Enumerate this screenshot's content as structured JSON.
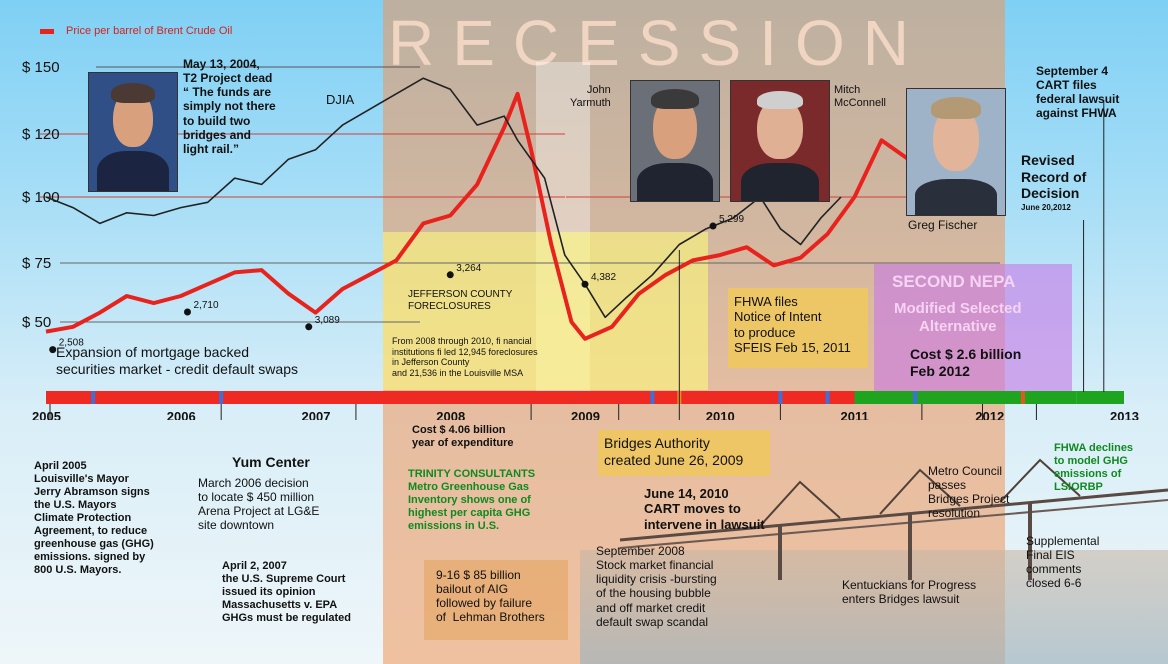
{
  "legend": {
    "label": "Price per barrel of Brent Crude Oil",
    "color": "#e8231e"
  },
  "recession_label": "RECESSION",
  "chart_data": {
    "type": "line",
    "title": "",
    "y_axis_ticks": [
      "$ 150",
      "$ 120",
      "$ 100",
      "$ 75",
      "$ 50"
    ],
    "ylim": [
      40,
      160
    ],
    "grid": false,
    "series": [
      {
        "name": "Price per barrel of Brent Crude Oil",
        "color": "#e8231e",
        "points": [
          {
            "t": 2005.0,
            "v": 46
          },
          {
            "t": 2005.2,
            "v": 48
          },
          {
            "t": 2005.4,
            "v": 54
          },
          {
            "t": 2005.6,
            "v": 61
          },
          {
            "t": 2005.8,
            "v": 58
          },
          {
            "t": 2006.0,
            "v": 61
          },
          {
            "t": 2006.2,
            "v": 66
          },
          {
            "t": 2006.4,
            "v": 71
          },
          {
            "t": 2006.6,
            "v": 72
          },
          {
            "t": 2006.8,
            "v": 62
          },
          {
            "t": 2007.0,
            "v": 54
          },
          {
            "t": 2007.2,
            "v": 64
          },
          {
            "t": 2007.4,
            "v": 70
          },
          {
            "t": 2007.6,
            "v": 76
          },
          {
            "t": 2007.8,
            "v": 90
          },
          {
            "t": 2008.0,
            "v": 93
          },
          {
            "t": 2008.2,
            "v": 104
          },
          {
            "t": 2008.4,
            "v": 123
          },
          {
            "t": 2008.5,
            "v": 138
          },
          {
            "t": 2008.6,
            "v": 115
          },
          {
            "t": 2008.75,
            "v": 82
          },
          {
            "t": 2008.9,
            "v": 50
          },
          {
            "t": 2009.0,
            "v": 43
          },
          {
            "t": 2009.2,
            "v": 48
          },
          {
            "t": 2009.4,
            "v": 62
          },
          {
            "t": 2009.6,
            "v": 70
          },
          {
            "t": 2009.8,
            "v": 76
          },
          {
            "t": 2010.0,
            "v": 78
          },
          {
            "t": 2010.2,
            "v": 81
          },
          {
            "t": 2010.4,
            "v": 74
          },
          {
            "t": 2010.6,
            "v": 77
          },
          {
            "t": 2010.8,
            "v": 86
          },
          {
            "t": 2011.0,
            "v": 100
          },
          {
            "t": 2011.2,
            "v": 118
          },
          {
            "t": 2011.4,
            "v": 112
          },
          {
            "t": 2011.6,
            "v": 109
          },
          {
            "t": 2011.8,
            "v": 106
          }
        ]
      },
      {
        "name": "DJIA",
        "color": "#222222",
        "points": [
          {
            "t": 2005.0,
            "v": 100
          },
          {
            "t": 2005.2,
            "v": 96
          },
          {
            "t": 2005.4,
            "v": 90
          },
          {
            "t": 2005.6,
            "v": 94
          },
          {
            "t": 2005.8,
            "v": 93
          },
          {
            "t": 2006.0,
            "v": 96
          },
          {
            "t": 2006.2,
            "v": 98
          },
          {
            "t": 2006.4,
            "v": 106
          },
          {
            "t": 2006.6,
            "v": 104
          },
          {
            "t": 2006.8,
            "v": 112
          },
          {
            "t": 2007.0,
            "v": 115
          },
          {
            "t": 2007.2,
            "v": 124
          },
          {
            "t": 2007.4,
            "v": 131
          },
          {
            "t": 2007.6,
            "v": 138
          },
          {
            "t": 2007.8,
            "v": 145
          },
          {
            "t": 2008.0,
            "v": 140
          },
          {
            "t": 2008.2,
            "v": 124
          },
          {
            "t": 2008.4,
            "v": 128
          },
          {
            "t": 2008.5,
            "v": 118
          },
          {
            "t": 2008.7,
            "v": 106
          },
          {
            "t": 2008.85,
            "v": 78
          },
          {
            "t": 2009.0,
            "v": 66
          },
          {
            "t": 2009.15,
            "v": 52
          },
          {
            "t": 2009.3,
            "v": 60
          },
          {
            "t": 2009.5,
            "v": 70
          },
          {
            "t": 2009.7,
            "v": 82
          },
          {
            "t": 2009.9,
            "v": 88
          },
          {
            "t": 2010.1,
            "v": 92
          },
          {
            "t": 2010.3,
            "v": 100
          },
          {
            "t": 2010.45,
            "v": 88
          },
          {
            "t": 2010.6,
            "v": 82
          },
          {
            "t": 2010.75,
            "v": 92
          },
          {
            "t": 2010.9,
            "v": 100
          }
        ]
      }
    ],
    "dow_points": [
      {
        "t": 2005.05,
        "label": "2,508"
      },
      {
        "t": 2006.05,
        "label": "2,710"
      },
      {
        "t": 2006.95,
        "label": "3,089"
      },
      {
        "t": 2008.0,
        "label": "3,264"
      },
      {
        "t": 2009.0,
        "label": "4,382"
      },
      {
        "t": 2009.95,
        "label": "5,299"
      }
    ]
  },
  "timeline": {
    "years": [
      "2005",
      "2006",
      "2007",
      "2008",
      "2009",
      "2010",
      "2011",
      "2012",
      "2013"
    ]
  },
  "labels": {
    "djia": "DJIA",
    "may2004": "May 13, 2004,\nT2 Project dead\n“ The funds are\nsimply not there\nto build two\nbridges and\nlight rail.”",
    "yarmuth": "John\nYarmuth",
    "mcconnell": "Mitch\nMcConnell",
    "fischer": "Greg Fischer",
    "sept4": "September 4\nCART files\nfederal lawsuit\nagainst FHWA",
    "revised_rod": "Revised\nRecord of\nDecision",
    "revised_rod_date": "June 20,2012",
    "jefferson": "JEFFERSON COUNTY\nFORECLOSURES",
    "foreclosure_note": "From 2008 through 2010, fi nancial\ninstitutions fi led 12,945 foreclosures\nin Jefferson County\nand 21,536 in the Louisville MSA",
    "mortgage": "Expansion of mortgage backed\nsecurities market - credit default swaps",
    "fhwa_noi": "FHWA files\nNotice of Intent\nto produce\nSFEIS Feb 15, 2011",
    "second_nepa": "SECOND NEPA",
    "modified": "Modified Selected\nAlternative",
    "cost": "Cost $ 2.6 billion\nFeb 2012",
    "april2005": "April 2005\nLouisville's Mayor\nJerry Abramson signs\nthe U.S. Mayors\nClimate Protection\nAgreement, to reduce\ngreenhouse gas (GHG)\nemissions. signed by\n800 U.S. Mayors.",
    "yum": "Yum Center",
    "march2006": "March 2006 decision\nto locate $ 450 million\nArena Project at LG&E\nsite downtown",
    "april2007": "April 2, 2007\nthe U.S. Supreme Court\nissued its opinion\nMassachusetts v. EPA\nGHGs must be regulated",
    "cost406": "Cost $ 4.06 billion\nyear of expenditure",
    "trinity": "TRINITY CONSULTANTS\nMetro Greenhouse Gas\nInventory shows one of\nhighest per capita GHG\nemissions in U.S.",
    "aig": "9-16 $ 85 billion\nbailout of AIG\nfollowed by failure\nof  Lehman Brothers",
    "bridges_authority": "Bridges Authority\ncreated June 26, 2009",
    "june2010": "June 14, 2010\nCART moves to\nintervene in lawsuit",
    "sept2008": "September 2008\nStock market financial\nliquidity crisis -bursting\nof the housing bubble\nand off market credit\ndefault swap scandal",
    "metro_council": "Metro Council\npasses\nBridges Project\nresolution",
    "kentuckians": "Kentuckians for Progress\nenters Bridges lawsuit",
    "fhwa_declines": "FHWA declines\nto model GHG\nemissions of\nLSIORBP",
    "supplemental": "Supplemental\nFinal EIS\ncomments\nclosed 6-6"
  }
}
